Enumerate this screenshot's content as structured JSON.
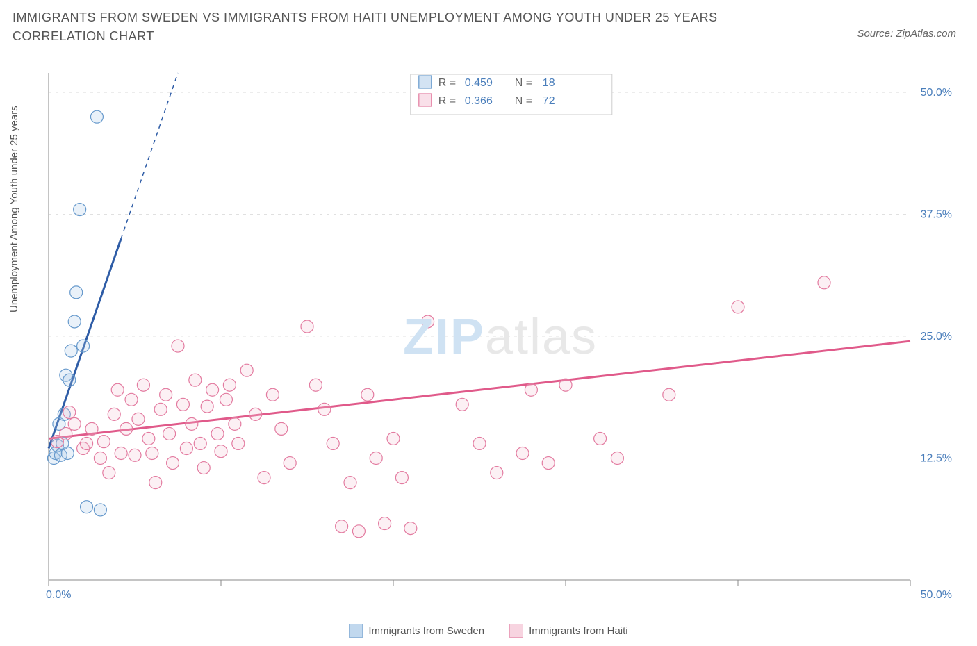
{
  "title": "IMMIGRANTS FROM SWEDEN VS IMMIGRANTS FROM HAITI UNEMPLOYMENT AMONG YOUTH UNDER 25 YEARS CORRELATION CHART",
  "source": "Source: ZipAtlas.com",
  "y_axis_label": "Unemployment Among Youth under 25 years",
  "watermark_zip": "ZIP",
  "watermark_atlas": "atlas",
  "chart": {
    "type": "scatter",
    "background_color": "#ffffff",
    "grid_color": "#e0e0e0",
    "axis_color": "#888888",
    "x_range": [
      0,
      50
    ],
    "y_range": [
      0,
      52
    ],
    "y_ticks": [
      12.5,
      25.0,
      37.5,
      50.0
    ],
    "y_tick_labels": [
      "12.5%",
      "25.0%",
      "37.5%",
      "50.0%"
    ],
    "x_ticks": [
      0,
      10,
      20,
      30,
      40,
      50
    ],
    "x_tick_labels": [
      "0.0%",
      "",
      "",
      "",
      "",
      "50.0%"
    ],
    "tick_label_color": "#4a7ebb",
    "marker_radius": 9,
    "marker_fill_opacity": 0.25,
    "marker_stroke_width": 1.2,
    "line_stroke_width": 3
  },
  "legend_box": {
    "r_label": "R =",
    "n_label": "N =",
    "series": [
      {
        "r": "0.459",
        "n": "18"
      },
      {
        "r": "0.366",
        "n": "72"
      }
    ],
    "value_color": "#4a7ebb",
    "label_color": "#666666",
    "border_color": "#cccccc",
    "swatch_size": 18
  },
  "series": [
    {
      "name": "Immigrants from Sweden",
      "color_stroke": "#6699cc",
      "color_fill": "#a8c8e8",
      "line_color": "#2e5ca6",
      "trend": {
        "x1": 0,
        "y1": 13.5,
        "x2": 4.2,
        "y2": 35,
        "dash_x2": 7.5,
        "dash_y2": 52
      },
      "points": [
        [
          0.3,
          12.5
        ],
        [
          0.4,
          13.0
        ],
        [
          0.5,
          13.8
        ],
        [
          0.7,
          12.8
        ],
        [
          0.8,
          14.0
        ],
        [
          1.0,
          21.0
        ],
        [
          1.2,
          20.5
        ],
        [
          1.3,
          23.5
        ],
        [
          1.5,
          26.5
        ],
        [
          1.6,
          29.5
        ],
        [
          1.8,
          38.0
        ],
        [
          2.0,
          24.0
        ],
        [
          2.2,
          7.5
        ],
        [
          2.8,
          47.5
        ],
        [
          3.0,
          7.2
        ],
        [
          0.6,
          16.0
        ],
        [
          0.9,
          17.0
        ],
        [
          1.1,
          13.0
        ]
      ]
    },
    {
      "name": "Immigrants from Haiti",
      "color_stroke": "#e37ba0",
      "color_fill": "#f4c2d4",
      "line_color": "#e05a8a",
      "trend": {
        "x1": 0,
        "y1": 14.5,
        "x2": 50,
        "y2": 24.5
      },
      "points": [
        [
          0.5,
          14.2
        ],
        [
          1.0,
          15.0
        ],
        [
          1.5,
          16.0
        ],
        [
          2.0,
          13.5
        ],
        [
          2.5,
          15.5
        ],
        [
          3.0,
          12.5
        ],
        [
          3.2,
          14.2
        ],
        [
          3.5,
          11.0
        ],
        [
          3.8,
          17.0
        ],
        [
          4.0,
          19.5
        ],
        [
          4.2,
          13.0
        ],
        [
          4.5,
          15.5
        ],
        [
          4.8,
          18.5
        ],
        [
          5.0,
          12.8
        ],
        [
          5.2,
          16.5
        ],
        [
          5.5,
          20.0
        ],
        [
          5.8,
          14.5
        ],
        [
          6.0,
          13.0
        ],
        [
          6.2,
          10.0
        ],
        [
          6.5,
          17.5
        ],
        [
          6.8,
          19.0
        ],
        [
          7.0,
          15.0
        ],
        [
          7.2,
          12.0
        ],
        [
          7.5,
          24.0
        ],
        [
          7.8,
          18.0
        ],
        [
          8.0,
          13.5
        ],
        [
          8.3,
          16.0
        ],
        [
          8.5,
          20.5
        ],
        [
          8.8,
          14.0
        ],
        [
          9.0,
          11.5
        ],
        [
          9.2,
          17.8
        ],
        [
          9.5,
          19.5
        ],
        [
          9.8,
          15.0
        ],
        [
          10.0,
          13.2
        ],
        [
          10.3,
          18.5
        ],
        [
          10.5,
          20.0
        ],
        [
          10.8,
          16.0
        ],
        [
          11.0,
          14.0
        ],
        [
          11.5,
          21.5
        ],
        [
          12.0,
          17.0
        ],
        [
          12.5,
          10.5
        ],
        [
          13.0,
          19.0
        ],
        [
          13.5,
          15.5
        ],
        [
          14.0,
          12.0
        ],
        [
          15.0,
          26.0
        ],
        [
          15.5,
          20.0
        ],
        [
          16.0,
          17.5
        ],
        [
          16.5,
          14.0
        ],
        [
          17.0,
          5.5
        ],
        [
          17.5,
          10.0
        ],
        [
          18.0,
          5.0
        ],
        [
          18.5,
          19.0
        ],
        [
          19.0,
          12.5
        ],
        [
          19.5,
          5.8
        ],
        [
          20.0,
          14.5
        ],
        [
          20.5,
          10.5
        ],
        [
          21.0,
          5.3
        ],
        [
          22.0,
          26.5
        ],
        [
          24.0,
          18.0
        ],
        [
          25.0,
          14.0
        ],
        [
          26.0,
          11.0
        ],
        [
          27.5,
          13.0
        ],
        [
          28.0,
          19.5
        ],
        [
          29.0,
          12.0
        ],
        [
          30.0,
          20.0
        ],
        [
          32.0,
          14.5
        ],
        [
          33.0,
          12.5
        ],
        [
          36.0,
          19.0
        ],
        [
          40.0,
          28.0
        ],
        [
          45.0,
          30.5
        ],
        [
          1.2,
          17.2
        ],
        [
          2.2,
          14.0
        ]
      ]
    }
  ],
  "bottom_legend": [
    {
      "label": "Immigrants from Sweden",
      "series_idx": 0
    },
    {
      "label": "Immigrants from Haiti",
      "series_idx": 1
    }
  ]
}
